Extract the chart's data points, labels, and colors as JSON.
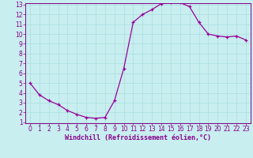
{
  "x": [
    0,
    1,
    2,
    3,
    4,
    5,
    6,
    7,
    8,
    9,
    10,
    11,
    12,
    13,
    14,
    15,
    16,
    17,
    18,
    19,
    20,
    21,
    22,
    23
  ],
  "y": [
    5.0,
    3.8,
    3.2,
    2.8,
    2.2,
    1.8,
    1.5,
    1.4,
    1.5,
    3.2,
    6.5,
    11.2,
    12.0,
    12.5,
    13.1,
    13.2,
    13.2,
    12.8,
    11.2,
    10.0,
    9.8,
    9.7,
    9.8,
    9.4
  ],
  "line_color": "#990099",
  "marker": "+",
  "bg_color": "#c8eef0",
  "grid_color": "#aadddd",
  "xlabel": "Windchill (Refroidissement éolien,°C)",
  "xlabel_color": "#880088",
  "tick_color": "#880088",
  "axis_color": "#880088",
  "ylim": [
    1,
    13
  ],
  "xlim": [
    -0.5,
    23.5
  ],
  "yticks": [
    1,
    2,
    3,
    4,
    5,
    6,
    7,
    8,
    9,
    10,
    11,
    12,
    13
  ],
  "xticks": [
    0,
    1,
    2,
    3,
    4,
    5,
    6,
    7,
    8,
    9,
    10,
    11,
    12,
    13,
    14,
    15,
    16,
    17,
    18,
    19,
    20,
    21,
    22,
    23
  ],
  "tick_fontsize": 5.5,
  "xlabel_fontsize": 6.0
}
